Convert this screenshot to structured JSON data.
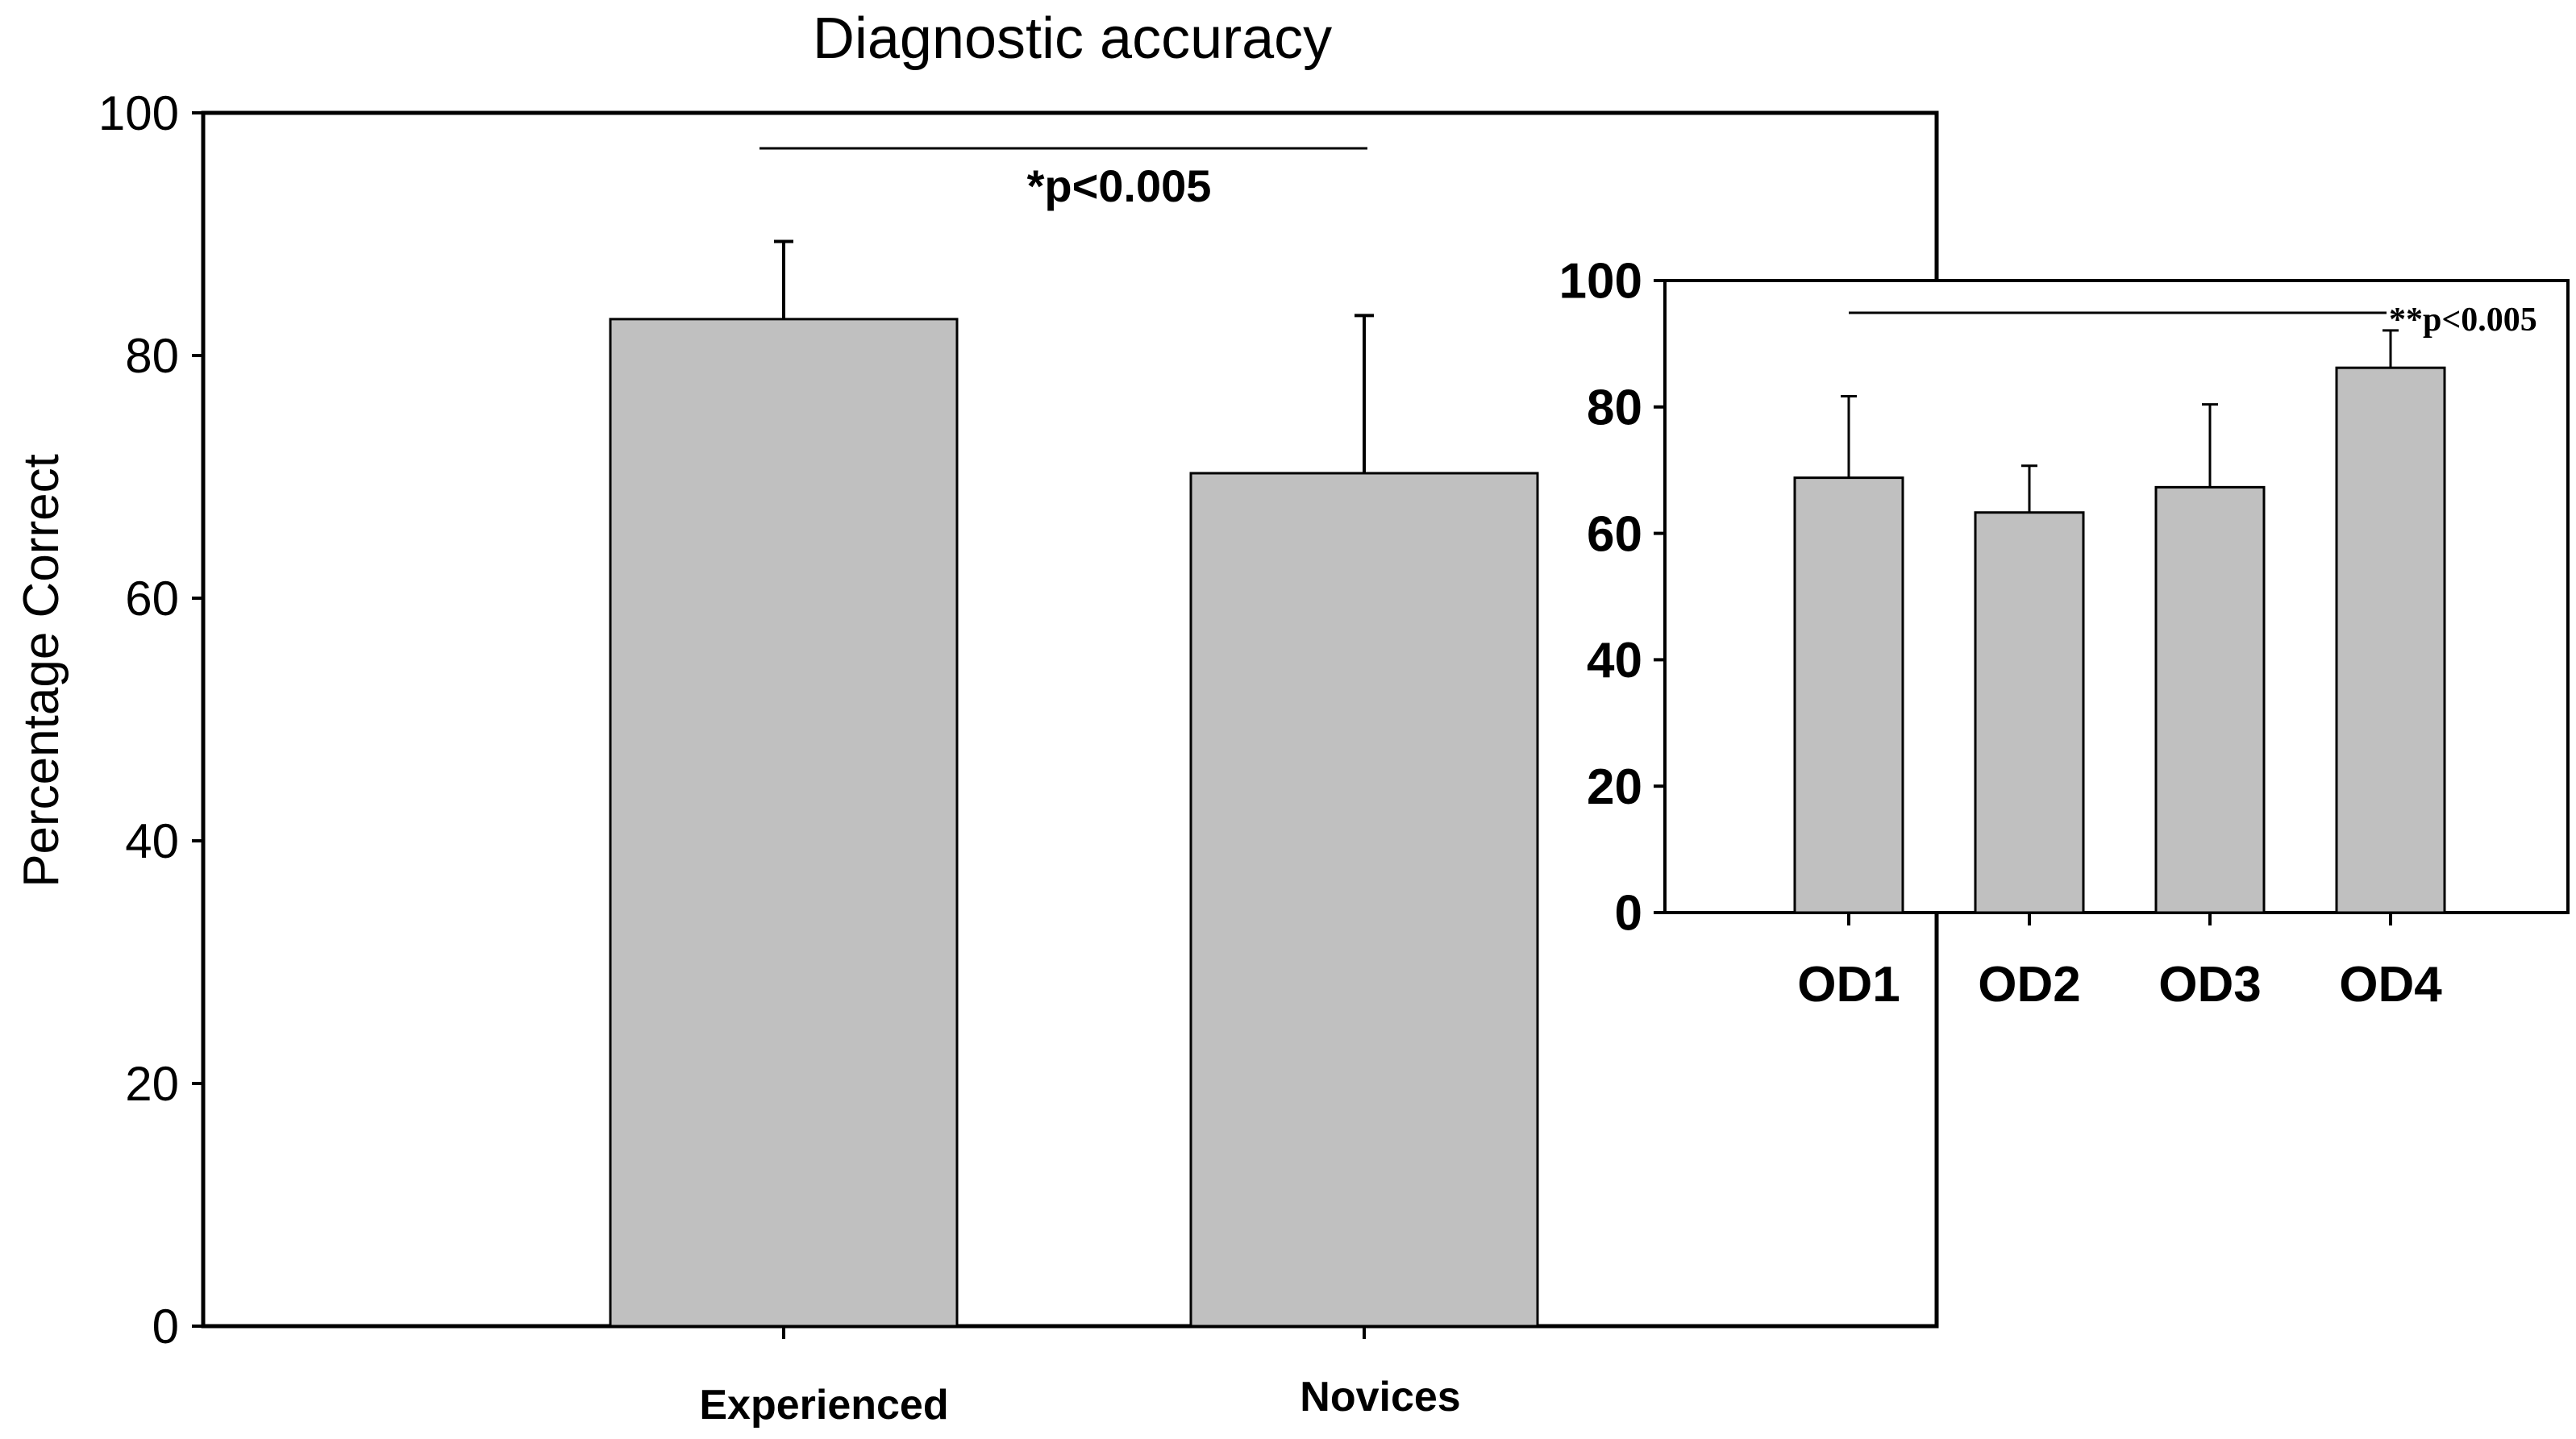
{
  "chart_data": [
    {
      "id": "main",
      "type": "bar",
      "title": "Diagnostic accuracy",
      "ylabel": "Percentage Correct",
      "xlabel": "",
      "ylim": [
        0,
        100
      ],
      "yticks": [
        0,
        20,
        40,
        60,
        80,
        100
      ],
      "categories": [
        "Experienced",
        "Novices"
      ],
      "values": [
        83,
        70.3
      ],
      "errors": [
        6.4,
        13
      ],
      "bar_color": "#c0c0c0",
      "annotation": "*p<0.005",
      "grid": false
    },
    {
      "id": "inset",
      "type": "bar",
      "title": "",
      "ylabel": "",
      "xlabel": "",
      "ylim": [
        0,
        100
      ],
      "yticks": [
        0,
        20,
        40,
        60,
        80,
        100
      ],
      "categories": [
        "OD1",
        "OD2",
        "OD3",
        "OD4"
      ],
      "values": [
        68.8,
        63.3,
        67.3,
        86.2
      ],
      "errors": [
        12.9,
        7.4,
        13.1,
        5.9
      ],
      "bar_color": "#c0c0c0",
      "annotation": "**p<0.005",
      "grid": false
    }
  ]
}
